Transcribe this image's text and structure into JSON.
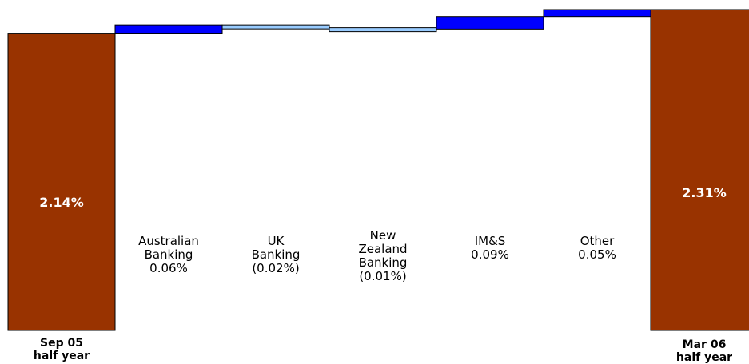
{
  "chart_data": {
    "type": "bar",
    "subtype": "waterfall",
    "title": "",
    "xlabel": "",
    "ylabel": "",
    "categories": [
      "Sep 05\nhalf year",
      "Australian\nBanking",
      "UK\nBanking",
      "New\nZealand\nBanking",
      "IM&S",
      "Other",
      "Mar 06\nhalf year"
    ],
    "values": [
      2.14,
      0.06,
      -0.02,
      -0.01,
      0.09,
      0.05,
      2.31
    ],
    "kinds": [
      "total",
      "increase",
      "decrease",
      "decrease",
      "increase",
      "increase",
      "total"
    ],
    "value_labels": [
      "2.14%",
      "0.06%",
      "(0.02%)",
      "(0.01%)",
      "0.09%",
      "0.05%",
      "2.31%"
    ],
    "grid": false,
    "legend": "none",
    "colors": {
      "total": "#993300",
      "increase": "#0000ff",
      "decrease": "#99ccff",
      "outline": "#000000"
    }
  }
}
